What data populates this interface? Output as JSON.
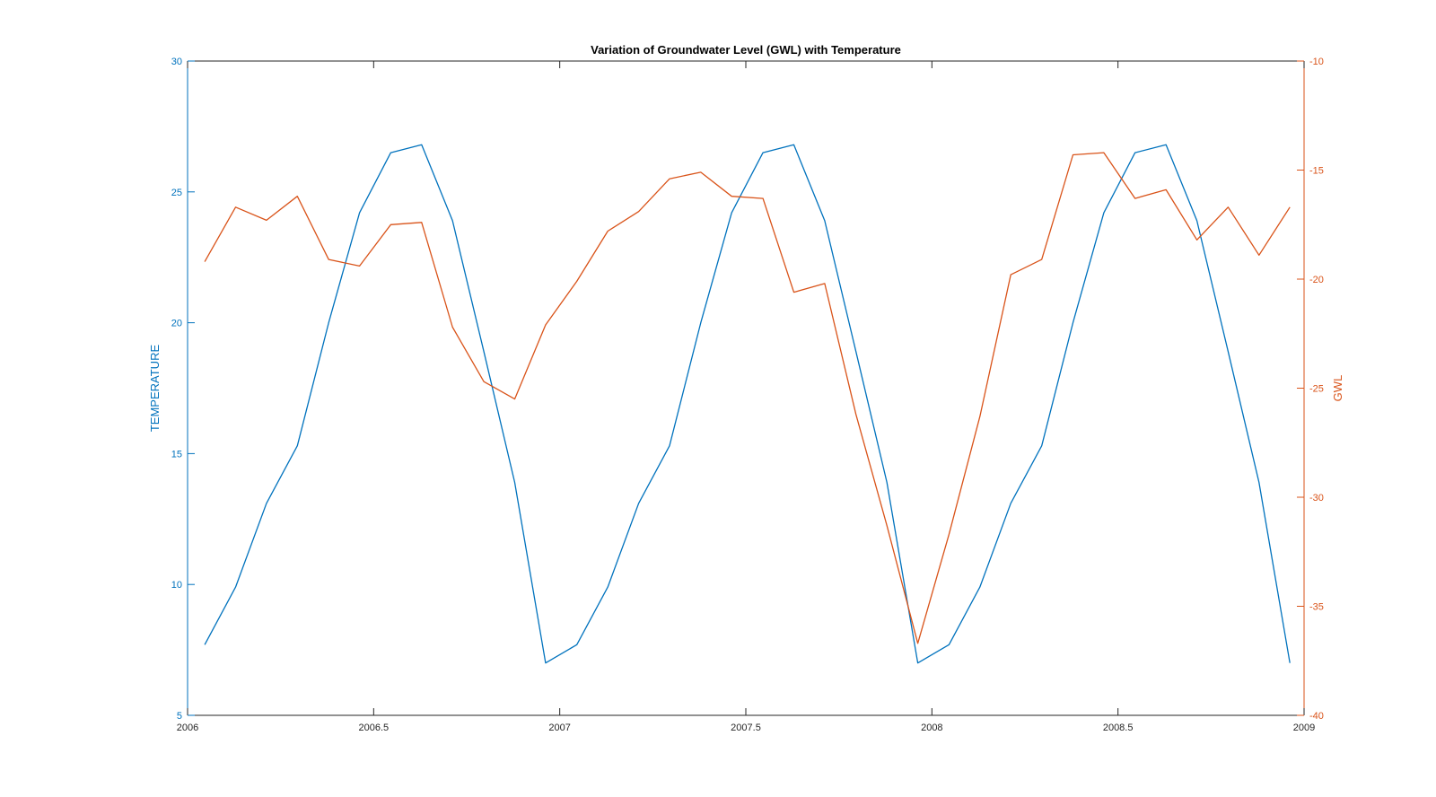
{
  "chart_data": {
    "type": "line",
    "title": "Variation of Groundwater Level (GWL) with Temperature",
    "xlabel": "",
    "xlim": [
      2006,
      2009
    ],
    "xticks": [
      2006,
      2006.5,
      2007,
      2007.5,
      2008,
      2008.5,
      2009
    ],
    "xtick_labels": [
      "2006",
      "2006.5",
      "2007",
      "2007.5",
      "2008",
      "2008.5",
      "2009"
    ],
    "y_left": {
      "label": "TEMPERATURE",
      "lim": [
        5,
        30
      ],
      "ticks": [
        5,
        10,
        15,
        20,
        25,
        30
      ],
      "tick_labels": [
        "5",
        "10",
        "15",
        "20",
        "25",
        "30"
      ],
      "color": "#0072BD"
    },
    "y_right": {
      "label": "GWL",
      "lim": [
        -40,
        -10
      ],
      "ticks": [
        -40,
        -35,
        -30,
        -25,
        -20,
        -15,
        -10
      ],
      "tick_labels": [
        "-40",
        "-35",
        "-30",
        "-25",
        "-20",
        "-15",
        "-10"
      ],
      "color": "#D95319"
    },
    "grid": false,
    "series": [
      {
        "axis": "left",
        "color": "#0072BD",
        "x": [
          2006.046,
          2006.129,
          2006.212,
          2006.295,
          2006.379,
          2006.462,
          2006.546,
          2006.629,
          2006.712,
          2006.796,
          2006.879,
          2006.962,
          2007.046,
          2007.129,
          2007.212,
          2007.295,
          2007.379,
          2007.462,
          2007.546,
          2007.629,
          2007.712,
          2007.796,
          2007.879,
          2007.962,
          2008.046,
          2008.129,
          2008.212,
          2008.295,
          2008.379,
          2008.462,
          2008.546,
          2008.629,
          2008.712,
          2008.796,
          2008.879,
          2008.962
        ],
        "y": [
          7.7,
          9.9,
          13.1,
          15.3,
          20.0,
          24.2,
          26.5,
          26.8,
          23.9,
          18.9,
          13.9,
          7.0,
          7.7,
          9.9,
          13.1,
          15.3,
          20.0,
          24.2,
          26.5,
          26.8,
          23.9,
          18.9,
          13.9,
          7.0,
          7.7,
          9.9,
          13.1,
          15.3,
          20.0,
          24.2,
          26.5,
          26.8,
          23.9,
          18.9,
          13.9,
          7.0
        ]
      },
      {
        "axis": "right",
        "color": "#D95319",
        "x": [
          2006.046,
          2006.129,
          2006.212,
          2006.295,
          2006.379,
          2006.462,
          2006.546,
          2006.629,
          2006.712,
          2006.796,
          2006.879,
          2006.962,
          2007.046,
          2007.129,
          2007.212,
          2007.295,
          2007.379,
          2007.462,
          2007.546,
          2007.629,
          2007.712,
          2007.796,
          2007.879,
          2007.962,
          2008.046,
          2008.129,
          2008.212,
          2008.295,
          2008.379,
          2008.462,
          2008.546,
          2008.629,
          2008.712,
          2008.796,
          2008.879,
          2008.962
        ],
        "y": [
          -19.2,
          -16.7,
          -17.3,
          -16.2,
          -19.1,
          -19.4,
          -17.5,
          -17.4,
          -22.2,
          -24.7,
          -25.5,
          -22.1,
          -20.1,
          -17.8,
          -16.9,
          -15.4,
          -15.1,
          -16.2,
          -16.3,
          -20.6,
          -20.2,
          -26.2,
          -31.3,
          -36.7,
          -31.7,
          -26.3,
          -19.8,
          -19.1,
          -14.3,
          -14.2,
          -16.3,
          -15.9,
          -18.2,
          -16.7,
          -18.9,
          -16.7
        ]
      }
    ]
  }
}
